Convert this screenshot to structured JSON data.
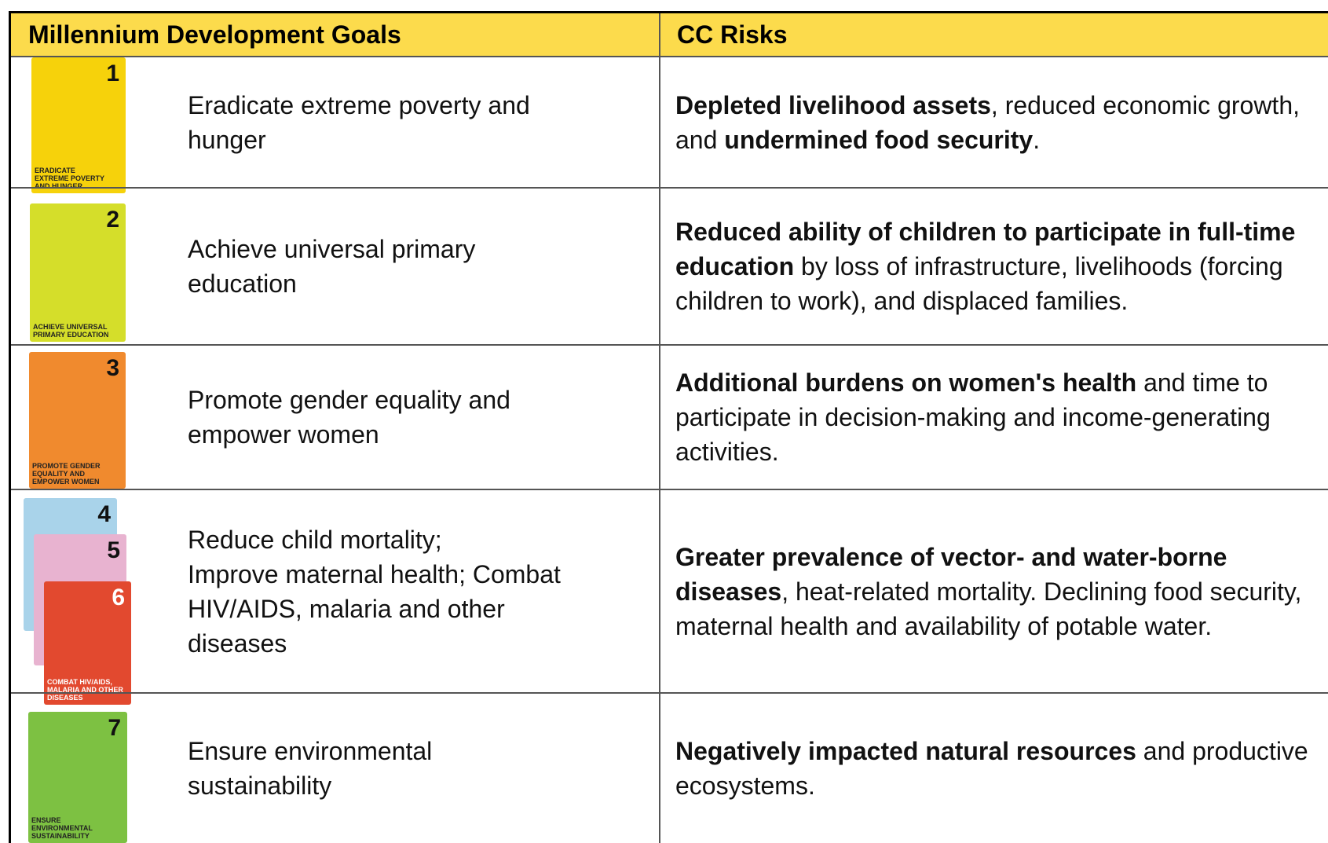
{
  "header": [
    "Millennium Development Goals",
    "CC Risks"
  ],
  "rows": [
    {
      "icons": [
        {
          "number": "1",
          "label": [
            "ERADICATE",
            "EXTREME POVERTY",
            "AND HUNGER"
          ],
          "color": "#f6d20b"
        }
      ],
      "goal": [
        "Eradicate extreme poverty and",
        "hunger"
      ],
      "risk": [
        {
          "text": "Depleted livelihood assets",
          "bold": true
        },
        {
          "text": ", reduced economic growth, and ",
          "bold": false
        },
        {
          "text": "undermined food security",
          "bold": true
        },
        {
          "text": ".",
          "bold": false
        }
      ]
    },
    {
      "icons": [
        {
          "number": "2",
          "label": [
            "ACHIEVE UNIVERSAL",
            "PRIMARY EDUCATION"
          ],
          "color": "#d5de2a"
        }
      ],
      "goal": [
        "Achieve universal primary",
        "education"
      ],
      "risk": [
        {
          "text": "Reduced ability of children to participate in full-time education",
          "bold": true
        },
        {
          "text": " by loss of infrastructure, livelihoods (forcing children to work), and displaced families.",
          "bold": false
        }
      ]
    },
    {
      "icons": [
        {
          "number": "3",
          "label": [
            "PROMOTE GENDER",
            "EQUALITY AND",
            "EMPOWER WOMEN"
          ],
          "color": "#f08a2e"
        }
      ],
      "goal": [
        "Promote gender equality and",
        "empower women"
      ],
      "risk": [
        {
          "text": "Additional burdens on women's health",
          "bold": true
        },
        {
          "text": " and time to participate in decision-making and income-generating activities.",
          "bold": false
        }
      ]
    },
    {
      "icons": [
        {
          "number": "4",
          "label": [],
          "color": "#a9d3ea"
        },
        {
          "number": "5",
          "label": [],
          "color": "#e8b3d0"
        },
        {
          "number": "6",
          "label": [
            "COMBAT HIV/AIDS,",
            "MALARIA AND OTHER",
            "DISEASES"
          ],
          "color": "#e2492f"
        }
      ],
      "goal": [
        "Reduce child mortality;",
        "Improve maternal health; Combat",
        "HIV/AIDS, malaria and other",
        "diseases"
      ],
      "risk": [
        {
          "text": "Greater prevalence of vector- and water-borne diseases",
          "bold": true
        },
        {
          "text": ", heat-related mortality. Declining food security, maternal health and availability of potable water.",
          "bold": false
        }
      ]
    },
    {
      "icons": [
        {
          "number": "7",
          "label": [
            "ENSURE",
            "ENVIRONMENTAL",
            "SUSTAINABILITY"
          ],
          "color": "#7dc142"
        }
      ],
      "goal": [
        "Ensure environmental",
        "sustainability"
      ],
      "risk": [
        {
          "text": "Negatively impacted natural resources",
          "bold": true
        },
        {
          "text": " and productive ecosystems.",
          "bold": false
        }
      ]
    }
  ]
}
